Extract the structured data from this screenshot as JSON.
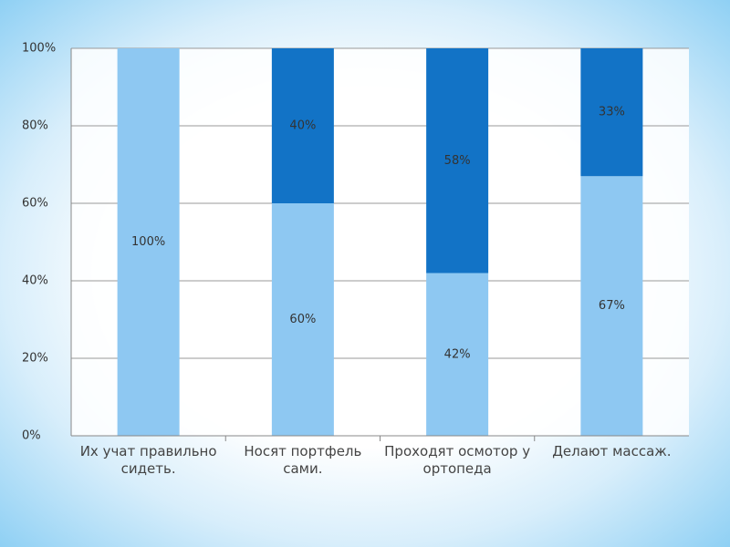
{
  "chart_data": {
    "type": "stacked-bar",
    "categories": [
      "Их учат правильно сидеть.",
      "Носят портфель сами.",
      "Проходят осмотор у ортопеда",
      "Делают массаж."
    ],
    "series": [
      {
        "color": "#8ec8f2",
        "values": [
          100,
          60,
          42,
          67
        ],
        "value_labels": [
          "100%",
          "60%",
          "42%",
          "67%"
        ]
      },
      {
        "color": "#1273c6",
        "values": [
          null,
          40,
          58,
          33
        ],
        "value_labels": [
          null,
          "40%",
          "58%",
          "33%"
        ]
      }
    ],
    "ylim": [
      0,
      100
    ],
    "yticks": [
      {
        "value": 0,
        "label": "0%"
      },
      {
        "value": 20,
        "label": "20%"
      },
      {
        "value": 40,
        "label": "40%"
      },
      {
        "value": 60,
        "label": "60%"
      },
      {
        "value": 80,
        "label": "80%"
      },
      {
        "value": 100,
        "label": "100%"
      }
    ],
    "grid": true
  }
}
